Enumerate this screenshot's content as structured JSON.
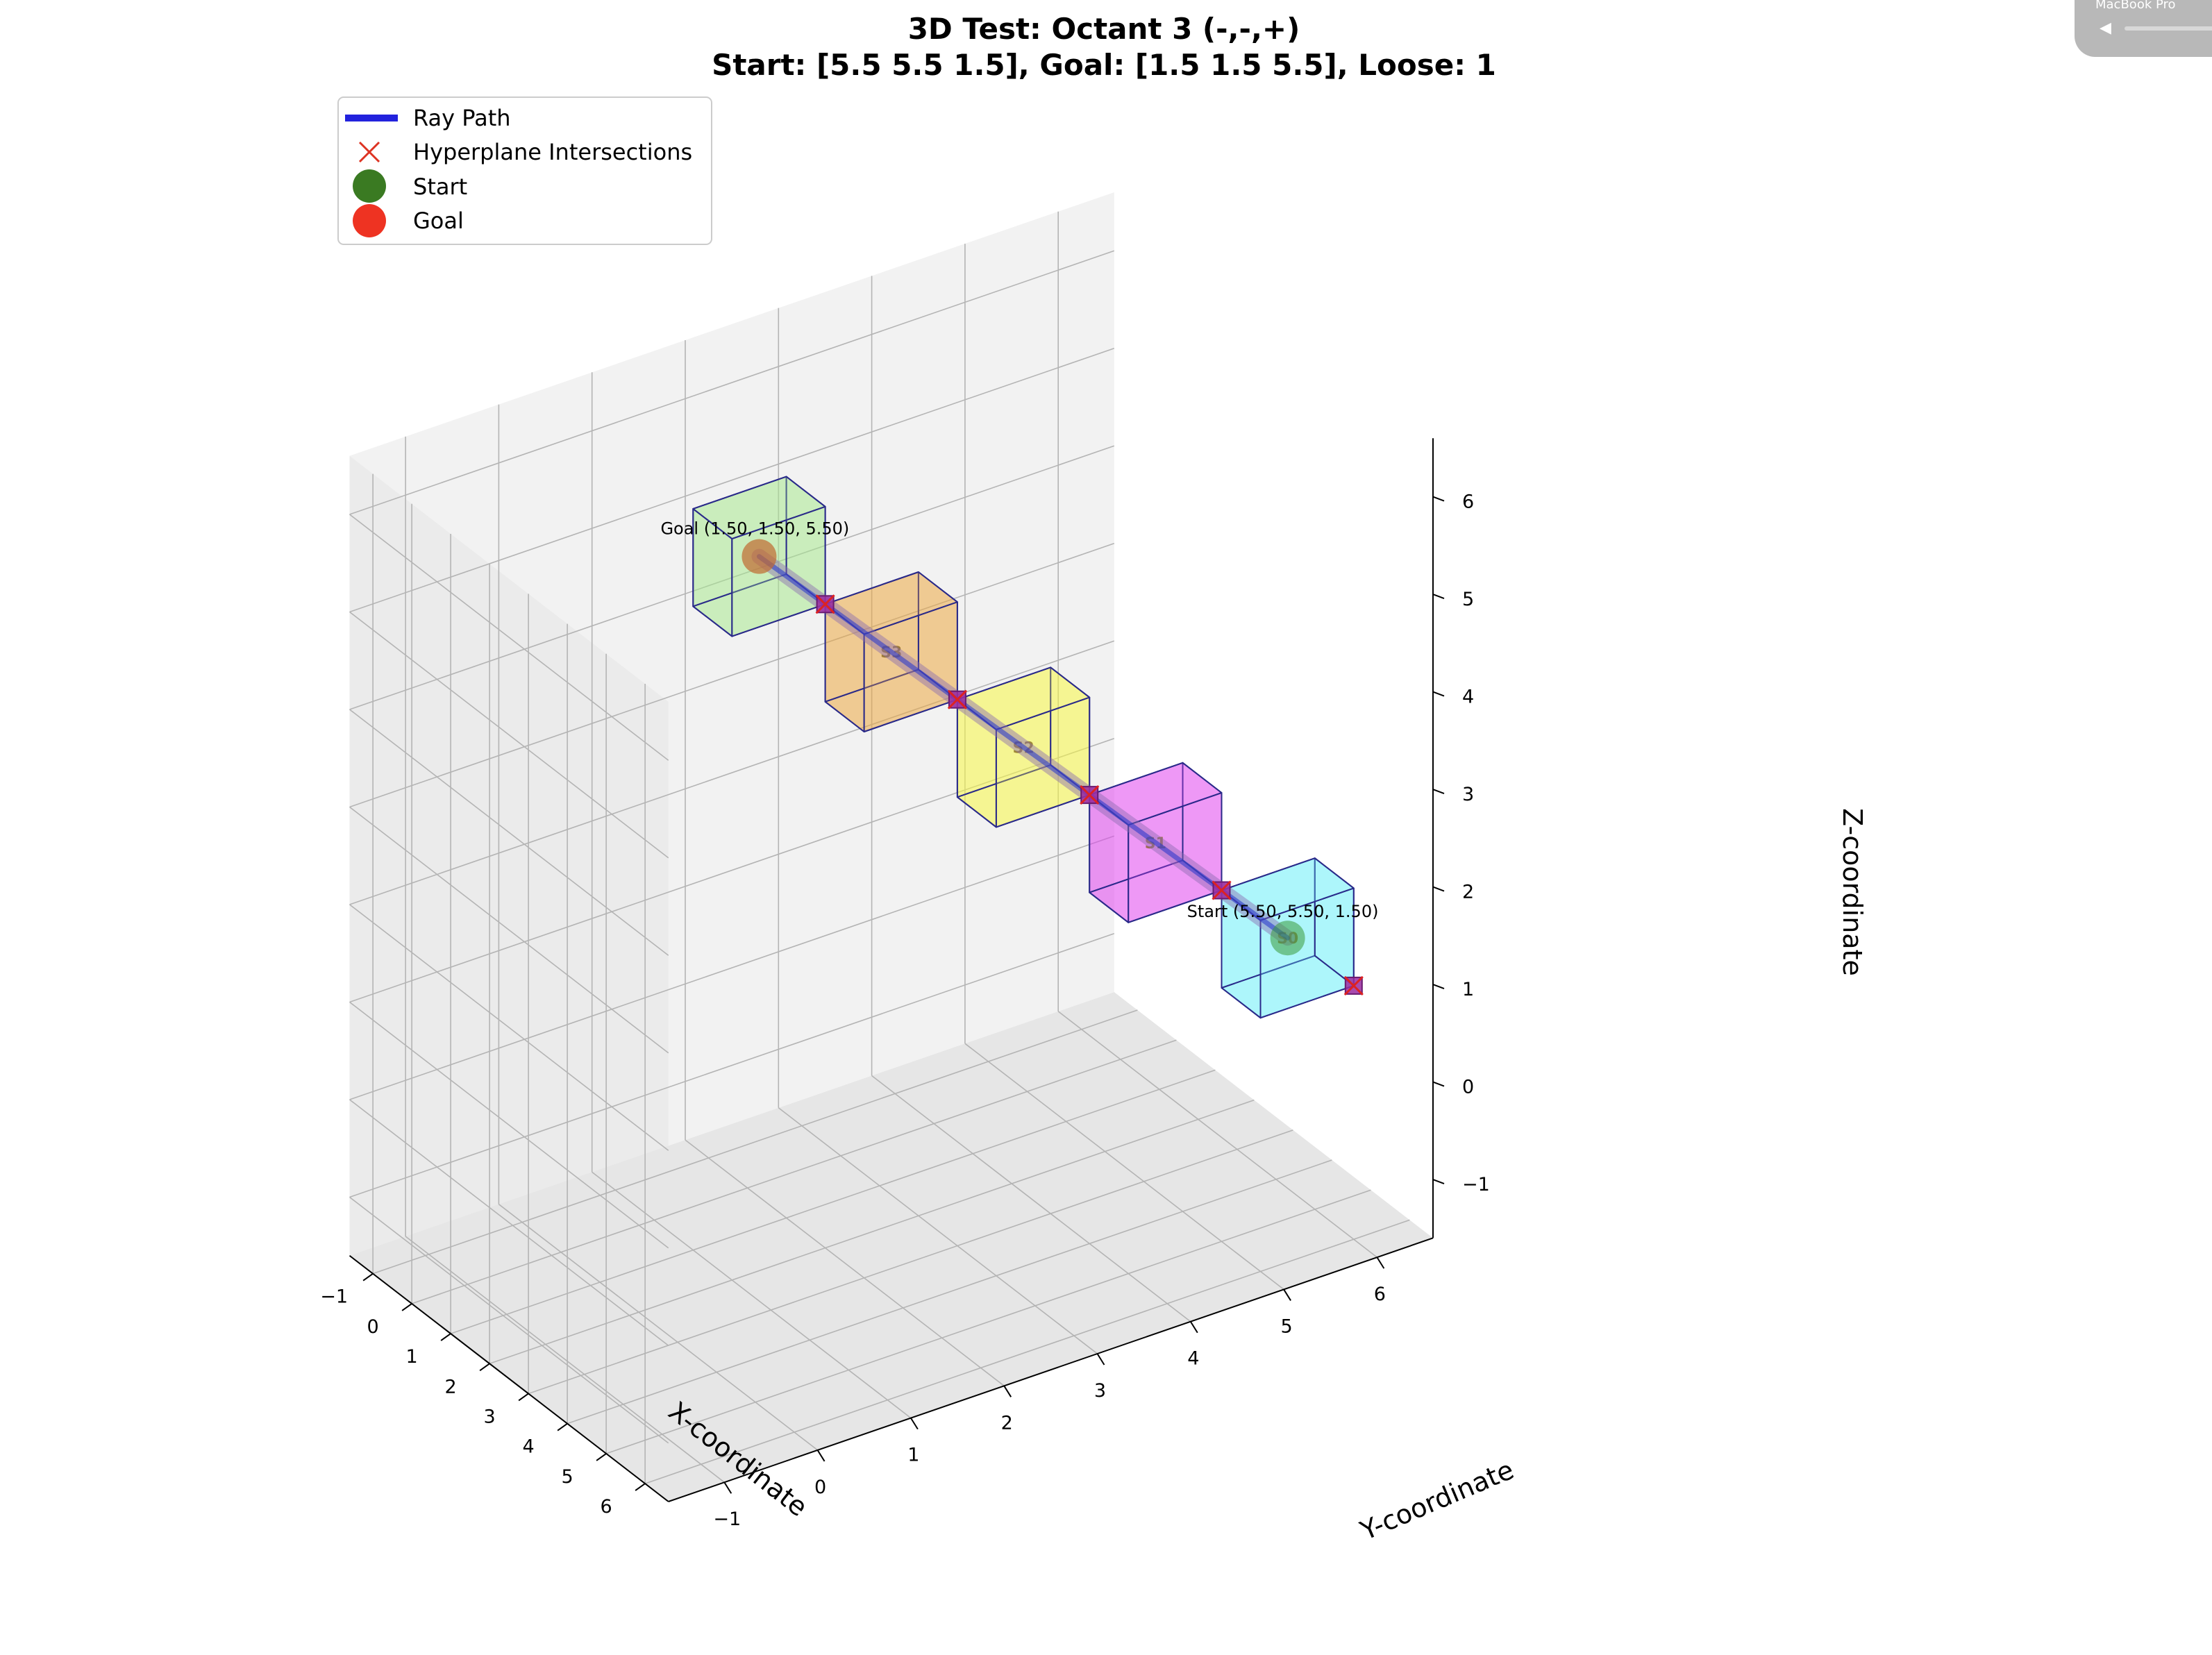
{
  "chart_data": {
    "type": "scatter",
    "projection": "3d",
    "title": [
      "3D Test: Octant 3 (-,-,+)",
      "Start: [5.5 5.5 1.5], Goal: [1.5 1.5 5.5], Loose: 1"
    ],
    "xlabel": "X-coordinate",
    "ylabel": "Y-coordinate",
    "zlabel": "Z-coordinate",
    "xlim": [
      -1.6,
      6.6
    ],
    "ylim": [
      -1.6,
      6.6
    ],
    "zlim": [
      -1.6,
      6.6
    ],
    "xticks": [
      "−1",
      "0",
      "1",
      "2",
      "3",
      "4",
      "5",
      "6"
    ],
    "yticks": [
      "−1",
      "0",
      "1",
      "2",
      "3",
      "4",
      "5",
      "6"
    ],
    "zticks": [
      "−1",
      "0",
      "1",
      "2",
      "3",
      "4",
      "5",
      "6"
    ],
    "tick_values": [
      -1,
      0,
      1,
      2,
      3,
      4,
      5,
      6
    ],
    "grid": true,
    "legend_position": "top-left",
    "legend": [
      {
        "label": "Ray Path",
        "marker": "line",
        "color": "#2222dd"
      },
      {
        "label": "Hyperplane Intersections",
        "marker": "x",
        "color": "#dd2222"
      },
      {
        "label": "Start",
        "marker": "circle",
        "color": "#3a7a22"
      },
      {
        "label": "Goal",
        "marker": "circle",
        "color": "#ee3322"
      }
    ],
    "cubes": [
      {
        "id": "S0",
        "label": "S0",
        "min": [
          5,
          5,
          1
        ],
        "color": "#66f0f8"
      },
      {
        "id": "S1",
        "label": "S1",
        "min": [
          4,
          4,
          2
        ],
        "color": "#e040f0"
      },
      {
        "id": "S2",
        "label": "S2",
        "min": [
          3,
          3,
          3
        ],
        "color": "#f8f840"
      },
      {
        "id": "S3",
        "label": "S3",
        "min": [
          2,
          2,
          4
        ],
        "color": "#eca840"
      },
      {
        "id": "G",
        "label": "",
        "min": [
          1,
          1,
          5
        ],
        "color": "#a8e890"
      }
    ],
    "ray_path": [
      [
        5.5,
        5.5,
        1.5
      ],
      [
        1.5,
        1.5,
        5.5
      ]
    ],
    "intersections": [
      [
        5.0,
        5.0,
        2.0
      ],
      [
        4.0,
        4.0,
        3.0
      ],
      [
        3.0,
        3.0,
        4.0
      ],
      [
        2.0,
        2.0,
        5.0
      ],
      [
        6.0,
        6.0,
        1.0
      ]
    ],
    "start": {
      "point": [
        5.5,
        5.5,
        1.5
      ],
      "label": "Start (5.50, 5.50, 1.50)"
    },
    "goal": {
      "point": [
        1.5,
        1.5,
        5.5
      ],
      "label": "Goal (1.50, 1.50, 5.50)"
    }
  },
  "overlay": {
    "label": "MacBook Pro"
  }
}
